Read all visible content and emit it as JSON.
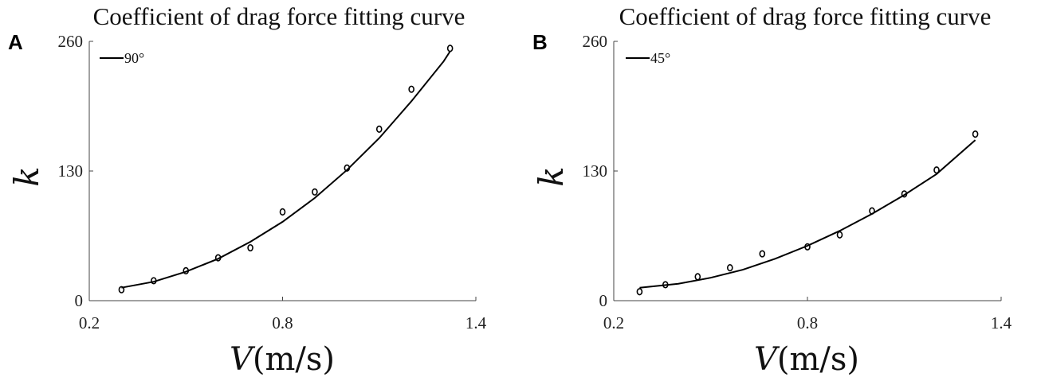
{
  "chart_data": [
    {
      "type": "line",
      "panel": "A",
      "title": "Coefficient of drag force fitting curve",
      "xlabel_var": "V",
      "xlabel_unit": "(m/s)",
      "ylabel": "k",
      "xlim": [
        0.2,
        1.4
      ],
      "ylim": [
        0,
        260
      ],
      "xticks": [
        "0.2",
        "0.8",
        "1.4"
      ],
      "yticks": [
        "0",
        "130",
        "260"
      ],
      "legend": "90°",
      "legend_position": "top-left",
      "series": [
        {
          "name": "90°",
          "kind": "fit",
          "x": [
            0.3,
            0.4,
            0.5,
            0.6,
            0.7,
            0.8,
            0.9,
            1.0,
            1.1,
            1.2,
            1.3,
            1.32
          ],
          "y": [
            13,
            19,
            29,
            42,
            59,
            79,
            103,
            131,
            163,
            200,
            240,
            250
          ]
        },
        {
          "kind": "points",
          "x": [
            0.3,
            0.4,
            0.5,
            0.6,
            0.7,
            0.8,
            0.9,
            1.0,
            1.1,
            1.2,
            1.32
          ],
          "y": [
            11,
            20,
            30,
            43,
            53,
            89,
            109,
            133,
            172,
            212,
            253
          ]
        }
      ]
    },
    {
      "type": "line",
      "panel": "B",
      "title": "Coefficient of drag force fitting curve",
      "xlabel_var": "V",
      "xlabel_unit": "(m/s)",
      "ylabel": "k",
      "xlim": [
        0.2,
        1.4
      ],
      "ylim": [
        0,
        260
      ],
      "xticks": [
        "0.2",
        "0.8",
        "1.4"
      ],
      "yticks": [
        "0",
        "130",
        "260"
      ],
      "legend": "45°",
      "legend_position": "top-left",
      "series": [
        {
          "name": "45°",
          "kind": "fit",
          "x": [
            0.28,
            0.4,
            0.5,
            0.6,
            0.7,
            0.8,
            0.9,
            1.0,
            1.1,
            1.2,
            1.32
          ],
          "y": [
            13,
            17,
            23,
            31,
            42,
            55,
            70,
            87,
            106,
            127,
            161
          ]
        },
        {
          "kind": "points",
          "x": [
            0.28,
            0.36,
            0.46,
            0.56,
            0.66,
            0.8,
            0.9,
            1.0,
            1.1,
            1.2,
            1.32
          ],
          "y": [
            9,
            16,
            24,
            33,
            47,
            54,
            66,
            90,
            107,
            131,
            167
          ]
        }
      ]
    }
  ]
}
